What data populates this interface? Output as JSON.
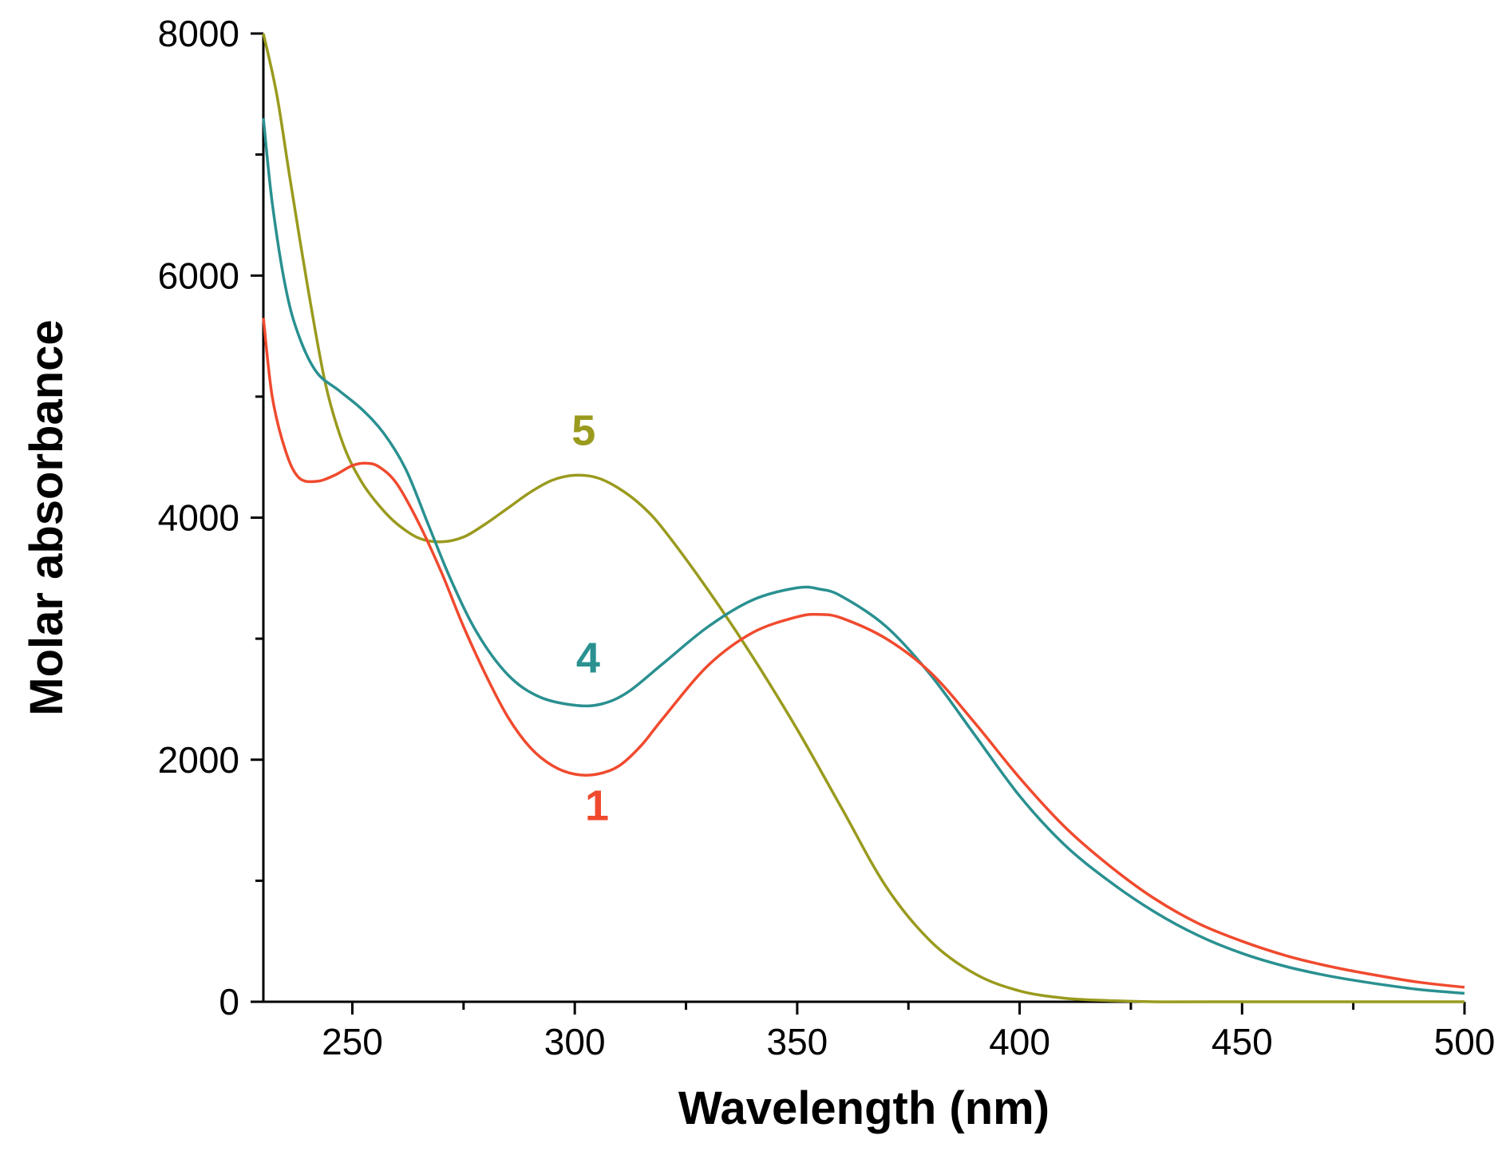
{
  "chart_data": {
    "type": "line",
    "xlabel": "Wavelength (nm)",
    "ylabel": "Molar absorbance",
    "xlim": [
      230,
      500
    ],
    "ylim": [
      0,
      8000
    ],
    "x_ticks": [
      250,
      300,
      350,
      400,
      450,
      500
    ],
    "y_ticks": [
      0,
      2000,
      4000,
      6000,
      8000
    ],
    "grid": false,
    "series": [
      {
        "name": "5",
        "color": "#9a9a1e",
        "points": [
          [
            230,
            8000
          ],
          [
            233,
            7500
          ],
          [
            236,
            6800
          ],
          [
            240,
            5900
          ],
          [
            244,
            5100
          ],
          [
            248,
            4600
          ],
          [
            252,
            4300
          ],
          [
            256,
            4100
          ],
          [
            260,
            3950
          ],
          [
            265,
            3830
          ],
          [
            270,
            3800
          ],
          [
            275,
            3840
          ],
          [
            280,
            3950
          ],
          [
            285,
            4080
          ],
          [
            290,
            4210
          ],
          [
            295,
            4310
          ],
          [
            300,
            4350
          ],
          [
            305,
            4330
          ],
          [
            310,
            4240
          ],
          [
            315,
            4100
          ],
          [
            320,
            3900
          ],
          [
            330,
            3400
          ],
          [
            340,
            2850
          ],
          [
            350,
            2250
          ],
          [
            360,
            1600
          ],
          [
            370,
            950
          ],
          [
            380,
            500
          ],
          [
            390,
            230
          ],
          [
            400,
            90
          ],
          [
            410,
            30
          ],
          [
            420,
            10
          ],
          [
            430,
            0
          ],
          [
            450,
            0
          ],
          [
            500,
            0
          ]
        ],
        "label_at": [
          302,
          4600
        ]
      },
      {
        "name": "4",
        "color": "#2a9090",
        "points": [
          [
            230,
            7300
          ],
          [
            232,
            6600
          ],
          [
            235,
            5900
          ],
          [
            238,
            5500
          ],
          [
            242,
            5200
          ],
          [
            247,
            5050
          ],
          [
            252,
            4900
          ],
          [
            257,
            4700
          ],
          [
            262,
            4400
          ],
          [
            267,
            3950
          ],
          [
            272,
            3500
          ],
          [
            278,
            3050
          ],
          [
            285,
            2700
          ],
          [
            292,
            2520
          ],
          [
            300,
            2450
          ],
          [
            306,
            2460
          ],
          [
            312,
            2560
          ],
          [
            320,
            2800
          ],
          [
            330,
            3100
          ],
          [
            340,
            3320
          ],
          [
            350,
            3420
          ],
          [
            355,
            3410
          ],
          [
            360,
            3350
          ],
          [
            370,
            3100
          ],
          [
            380,
            2700
          ],
          [
            390,
            2200
          ],
          [
            400,
            1700
          ],
          [
            410,
            1300
          ],
          [
            420,
            1000
          ],
          [
            430,
            750
          ],
          [
            440,
            550
          ],
          [
            450,
            400
          ],
          [
            460,
            290
          ],
          [
            470,
            210
          ],
          [
            480,
            150
          ],
          [
            490,
            100
          ],
          [
            500,
            70
          ]
        ],
        "label_at": [
          303,
          2720
        ]
      },
      {
        "name": "1",
        "color": "#f04a2e",
        "points": [
          [
            230,
            5650
          ],
          [
            232,
            5000
          ],
          [
            235,
            4550
          ],
          [
            238,
            4330
          ],
          [
            242,
            4300
          ],
          [
            246,
            4350
          ],
          [
            250,
            4430
          ],
          [
            253,
            4450
          ],
          [
            256,
            4420
          ],
          [
            260,
            4280
          ],
          [
            265,
            3950
          ],
          [
            270,
            3550
          ],
          [
            275,
            3100
          ],
          [
            280,
            2700
          ],
          [
            285,
            2350
          ],
          [
            290,
            2100
          ],
          [
            295,
            1950
          ],
          [
            300,
            1880
          ],
          [
            305,
            1880
          ],
          [
            310,
            1950
          ],
          [
            315,
            2120
          ],
          [
            320,
            2350
          ],
          [
            330,
            2780
          ],
          [
            340,
            3050
          ],
          [
            350,
            3180
          ],
          [
            355,
            3200
          ],
          [
            360,
            3170
          ],
          [
            370,
            3000
          ],
          [
            380,
            2720
          ],
          [
            390,
            2300
          ],
          [
            400,
            1850
          ],
          [
            410,
            1450
          ],
          [
            420,
            1130
          ],
          [
            430,
            860
          ],
          [
            440,
            650
          ],
          [
            450,
            500
          ],
          [
            460,
            380
          ],
          [
            470,
            290
          ],
          [
            480,
            220
          ],
          [
            490,
            160
          ],
          [
            500,
            120
          ]
        ],
        "label_at": [
          305,
          1500
        ]
      }
    ]
  }
}
